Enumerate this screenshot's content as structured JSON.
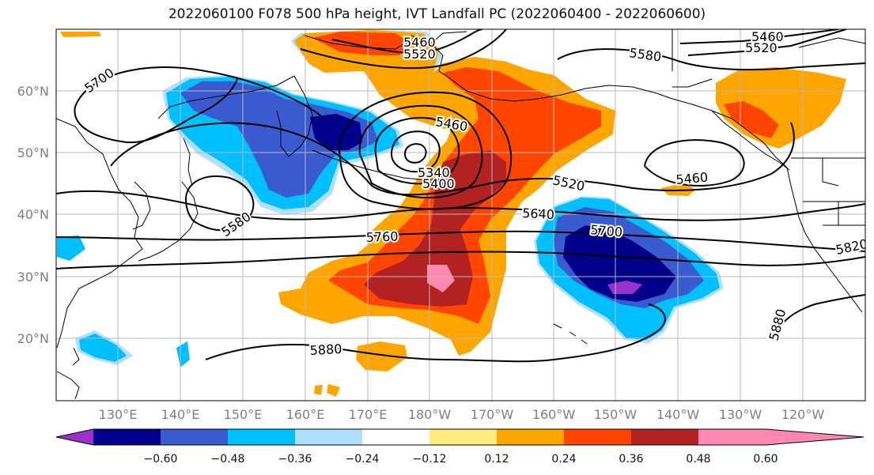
{
  "title": "2022060100 F078 500 hPa height, IVT Landfall PC (2022060400 - 2022060600)",
  "map": {
    "lat_ticks": [
      "20°N",
      "30°N",
      "40°N",
      "50°N",
      "60°N"
    ],
    "lon_ticks": [
      "130°E",
      "140°E",
      "150°E",
      "160°E",
      "170°E",
      "180°W",
      "170°W",
      "160°W",
      "150°W",
      "140°W",
      "130°W",
      "120°W"
    ],
    "contour_labels": [
      "5460",
      "5520",
      "5460",
      "5520",
      "5580",
      "5700",
      "5460",
      "5340",
      "5400",
      "5460",
      "5520",
      "5640",
      "5580",
      "5700",
      "5760",
      "5820",
      "5880",
      "5880"
    ],
    "colors": {
      "purple": "#9932cc",
      "navy": "#00008b",
      "blue": "#3a5bd0",
      "cyan": "#00bfff",
      "lightblue": "#b0e0ff",
      "yellow": "#ffeb80",
      "orange": "#ffa500",
      "redorange": "#ff4500",
      "darkred": "#b22222",
      "pink": "#ff88b0"
    }
  },
  "colorbar": {
    "ticks": [
      "−0.60",
      "−0.48",
      "−0.36",
      "−0.24",
      "−0.12",
      "0.12",
      "0.24",
      "0.36",
      "0.48",
      "0.60"
    ],
    "colors": [
      "#9932cc",
      "#00008b",
      "#3a5bd0",
      "#00bfff",
      "#b0e0ff",
      "#ffffff",
      "#ffeb80",
      "#ffa500",
      "#ff4500",
      "#b22222",
      "#ff88b0"
    ]
  }
}
